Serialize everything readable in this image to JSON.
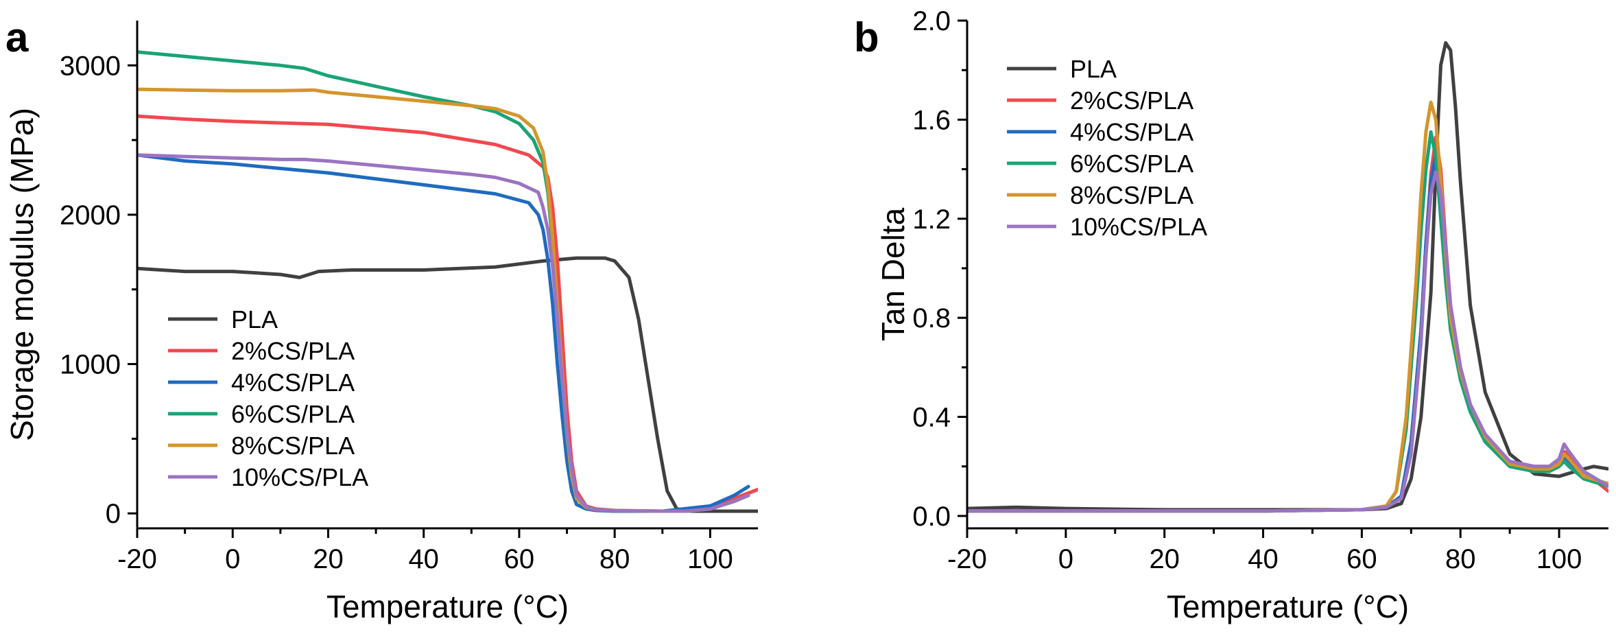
{
  "chart_data": [
    {
      "type": "line",
      "panel_label": "a",
      "xlabel": "Temperature (°C)",
      "ylabel": "Storage modulus (MPa)",
      "xlim": [
        -20,
        110
      ],
      "ylim": [
        -100,
        3300
      ],
      "xticks": [
        -20,
        0,
        20,
        40,
        60,
        80,
        100
      ],
      "yticks": [
        0,
        1000,
        2000,
        3000
      ],
      "legend_position": "bottom-left",
      "series": [
        {
          "name": "PLA",
          "color": "#404040",
          "x": [
            -20,
            -10,
            0,
            10,
            14,
            18,
            25,
            40,
            55,
            65,
            72,
            78,
            80,
            83,
            85,
            87,
            89,
            91,
            93,
            96,
            100,
            110
          ],
          "y": [
            1640,
            1620,
            1620,
            1600,
            1580,
            1620,
            1630,
            1630,
            1650,
            1690,
            1710,
            1710,
            1690,
            1580,
            1300,
            900,
            500,
            150,
            30,
            15,
            15,
            15
          ]
        },
        {
          "name": "2%CS/PLA",
          "color": "#f0484f",
          "x": [
            -20,
            -10,
            0,
            10,
            20,
            40,
            55,
            62,
            65,
            66,
            67,
            68,
            69,
            70,
            71,
            72,
            74,
            76,
            80,
            90,
            95,
            100,
            105,
            110
          ],
          "y": [
            2660,
            2640,
            2625,
            2615,
            2605,
            2550,
            2470,
            2400,
            2320,
            2250,
            2050,
            1700,
            1200,
            700,
            350,
            150,
            50,
            30,
            20,
            15,
            15,
            40,
            100,
            160
          ]
        },
        {
          "name": "4%CS/PLA",
          "color": "#1f6bbf",
          "x": [
            -20,
            -10,
            0,
            10,
            20,
            40,
            55,
            62,
            64,
            65,
            66,
            67,
            68,
            69,
            70,
            71,
            72,
            74,
            76,
            80,
            90,
            100,
            105,
            108
          ],
          "y": [
            2400,
            2360,
            2340,
            2310,
            2280,
            2200,
            2140,
            2080,
            2000,
            1900,
            1700,
            1400,
            1000,
            650,
            350,
            150,
            60,
            30,
            20,
            15,
            15,
            50,
            120,
            180
          ]
        },
        {
          "name": "6%CS/PLA",
          "color": "#1aa377",
          "x": [
            -20,
            -10,
            0,
            10,
            15,
            20,
            30,
            40,
            50,
            55,
            60,
            63,
            65,
            66,
            67,
            68,
            69,
            70,
            71,
            72,
            74,
            76,
            80,
            90,
            95,
            100,
            105,
            108
          ],
          "y": [
            3090,
            3060,
            3030,
            3000,
            2980,
            2930,
            2860,
            2790,
            2730,
            2690,
            2610,
            2500,
            2350,
            2150,
            1800,
            1350,
            900,
            500,
            250,
            100,
            40,
            25,
            18,
            15,
            15,
            30,
            80,
            120
          ]
        },
        {
          "name": "8%CS/PLA",
          "color": "#d4952b",
          "x": [
            -20,
            -10,
            0,
            10,
            17,
            20,
            30,
            40,
            50,
            55,
            60,
            63,
            65,
            66,
            67,
            68,
            69,
            70,
            71,
            72,
            74,
            76,
            80,
            90,
            95,
            100,
            105,
            108
          ],
          "y": [
            2840,
            2835,
            2830,
            2830,
            2835,
            2820,
            2790,
            2760,
            2730,
            2710,
            2660,
            2580,
            2420,
            2200,
            1850,
            1400,
            950,
            550,
            250,
            100,
            40,
            25,
            18,
            15,
            15,
            30,
            80,
            120
          ]
        },
        {
          "name": "10%CS/PLA",
          "color": "#9b74c2",
          "x": [
            -20,
            -10,
            0,
            10,
            15,
            20,
            30,
            40,
            50,
            55,
            60,
            64,
            65,
            66,
            67,
            68,
            69,
            70,
            71,
            72,
            74,
            76,
            80,
            90,
            95,
            100,
            105,
            108
          ],
          "y": [
            2400,
            2390,
            2380,
            2370,
            2370,
            2360,
            2330,
            2300,
            2270,
            2250,
            2210,
            2150,
            2050,
            1900,
            1650,
            1300,
            900,
            550,
            300,
            120,
            45,
            25,
            18,
            15,
            15,
            30,
            80,
            120
          ]
        }
      ]
    },
    {
      "type": "line",
      "panel_label": "b",
      "xlabel": "Temperature (°C)",
      "ylabel": "Tan Delta",
      "xlim": [
        -20,
        110
      ],
      "ylim": [
        -0.05,
        2.0
      ],
      "xticks": [
        -20,
        0,
        20,
        40,
        60,
        80,
        100
      ],
      "yticks": [
        0.0,
        0.4,
        0.8,
        1.2,
        1.6,
        2.0
      ],
      "legend_position": "top-left",
      "series": [
        {
          "name": "PLA",
          "color": "#404040",
          "x": [
            -20,
            -10,
            0,
            20,
            40,
            60,
            65,
            68,
            70,
            72,
            74,
            75,
            76,
            77,
            78,
            79,
            80,
            82,
            85,
            90,
            95,
            100,
            105,
            107,
            110
          ],
          "y": [
            0.03,
            0.035,
            0.03,
            0.025,
            0.025,
            0.025,
            0.03,
            0.05,
            0.15,
            0.4,
            0.9,
            1.4,
            1.82,
            1.91,
            1.88,
            1.65,
            1.35,
            0.85,
            0.5,
            0.25,
            0.17,
            0.16,
            0.19,
            0.2,
            0.19
          ]
        },
        {
          "name": "2%CS/PLA",
          "color": "#f0484f",
          "x": [
            -20,
            0,
            20,
            40,
            60,
            65,
            68,
            70,
            72,
            73,
            74,
            75,
            76,
            77,
            78,
            80,
            82,
            85,
            90,
            95,
            98,
            100,
            101,
            102,
            105,
            110
          ],
          "y": [
            0.02,
            0.02,
            0.02,
            0.02,
            0.025,
            0.035,
            0.08,
            0.3,
            0.75,
            1.1,
            1.38,
            1.53,
            1.4,
            1.1,
            0.85,
            0.6,
            0.45,
            0.32,
            0.22,
            0.2,
            0.2,
            0.22,
            0.26,
            0.25,
            0.18,
            0.1
          ]
        },
        {
          "name": "4%CS/PLA",
          "color": "#1f6bbf",
          "x": [
            -20,
            0,
            20,
            40,
            60,
            65,
            68,
            70,
            72,
            73,
            74,
            75,
            76,
            77,
            78,
            80,
            82,
            85,
            90,
            95,
            98,
            100,
            101,
            102,
            105,
            110
          ],
          "y": [
            0.02,
            0.02,
            0.02,
            0.02,
            0.025,
            0.035,
            0.08,
            0.3,
            0.75,
            1.1,
            1.35,
            1.46,
            1.3,
            1.0,
            0.8,
            0.55,
            0.42,
            0.3,
            0.2,
            0.18,
            0.18,
            0.2,
            0.24,
            0.22,
            0.16,
            0.12
          ]
        },
        {
          "name": "6%CS/PLA",
          "color": "#1aa377",
          "x": [
            -20,
            0,
            20,
            40,
            60,
            65,
            67,
            69,
            71,
            72,
            73,
            74,
            75,
            76,
            77,
            78,
            80,
            82,
            85,
            90,
            95,
            98,
            100,
            101,
            102,
            105,
            110
          ],
          "y": [
            0.02,
            0.02,
            0.02,
            0.02,
            0.025,
            0.04,
            0.1,
            0.35,
            0.85,
            1.15,
            1.4,
            1.55,
            1.45,
            1.2,
            0.95,
            0.75,
            0.55,
            0.42,
            0.3,
            0.2,
            0.18,
            0.18,
            0.2,
            0.22,
            0.2,
            0.15,
            0.12
          ]
        },
        {
          "name": "8%CS/PLA",
          "color": "#d4952b",
          "x": [
            -20,
            0,
            20,
            40,
            60,
            65,
            67,
            69,
            71,
            72,
            73,
            74,
            75,
            76,
            77,
            78,
            80,
            82,
            85,
            90,
            95,
            98,
            100,
            101,
            102,
            105,
            110
          ],
          "y": [
            0.02,
            0.02,
            0.02,
            0.02,
            0.025,
            0.04,
            0.1,
            0.4,
            0.95,
            1.3,
            1.55,
            1.67,
            1.6,
            1.35,
            1.05,
            0.8,
            0.58,
            0.45,
            0.32,
            0.21,
            0.19,
            0.19,
            0.21,
            0.25,
            0.23,
            0.16,
            0.13
          ]
        },
        {
          "name": "10%CS/PLA",
          "color": "#9b74c2",
          "x": [
            -20,
            0,
            20,
            40,
            60,
            65,
            68,
            70,
            72,
            73,
            74,
            75,
            76,
            77,
            78,
            80,
            82,
            85,
            90,
            95,
            98,
            100,
            101,
            102,
            105,
            110
          ],
          "y": [
            0.02,
            0.02,
            0.02,
            0.02,
            0.025,
            0.035,
            0.07,
            0.25,
            0.7,
            1.05,
            1.3,
            1.39,
            1.3,
            1.08,
            0.85,
            0.6,
            0.45,
            0.33,
            0.22,
            0.2,
            0.2,
            0.23,
            0.29,
            0.26,
            0.18,
            0.12
          ]
        }
      ]
    }
  ]
}
